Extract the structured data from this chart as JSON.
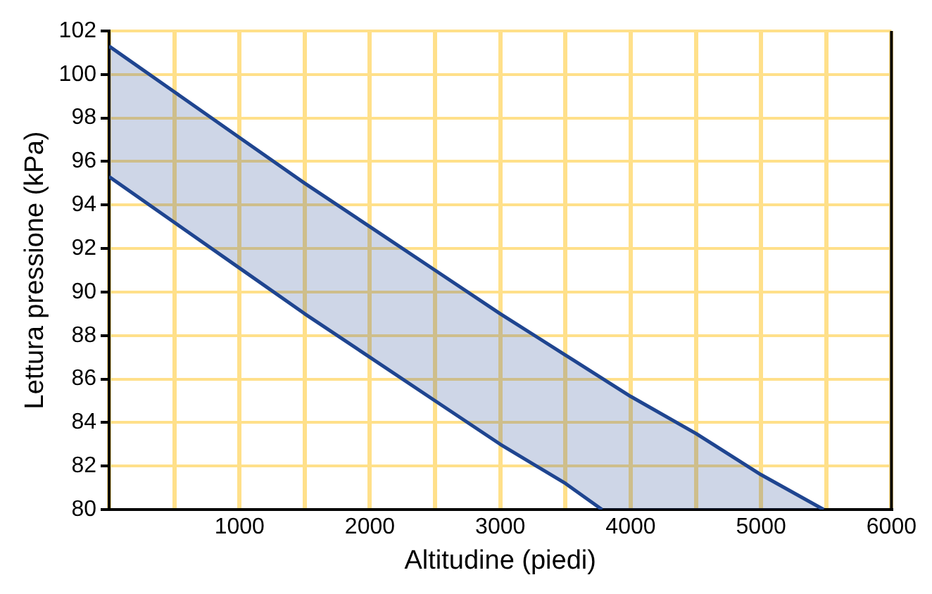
{
  "chart_data": {
    "type": "line",
    "xlabel": "Altitudine (piedi)",
    "ylabel": "Lettura pressione (kPa)",
    "xlim": [
      0,
      6000
    ],
    "ylim": [
      80,
      102
    ],
    "xticks": [
      {
        "value": 0,
        "label": null
      },
      {
        "value": 500,
        "label": null
      },
      1000,
      {
        "value": 1500,
        "label": null
      },
      2000,
      {
        "value": 2500,
        "label": null
      },
      3000,
      {
        "value": 3500,
        "label": null
      },
      4000,
      {
        "value": 4500,
        "label": null
      },
      5000,
      {
        "value": 5500,
        "label": null
      },
      6000
    ],
    "yticks": [
      80,
      82,
      84,
      86,
      88,
      90,
      92,
      94,
      96,
      98,
      100,
      102
    ],
    "grid": true,
    "legend": false,
    "marker": "none",
    "line_style": "solid",
    "series": [
      {
        "type": "line",
        "color": "#1f4590",
        "x": [
          0,
          500,
          1000,
          1500,
          2000,
          2500,
          3000,
          3500,
          3780
        ],
        "values": [
          95.3,
          93.2,
          91.1,
          89.0,
          87.0,
          85.0,
          83.0,
          81.2,
          80.0
        ]
      },
      {
        "type": "area",
        "color": "#1f4590",
        "x": [
          0,
          500,
          1000,
          1500,
          2000,
          2500,
          3000,
          3500,
          4000,
          4500,
          5000,
          5480
        ],
        "values": [
          101.3,
          99.2,
          97.1,
          95.0,
          93.0,
          91.0,
          89.0,
          87.1,
          85.2,
          83.5,
          81.6,
          80.0
        ]
      }
    ]
  }
}
